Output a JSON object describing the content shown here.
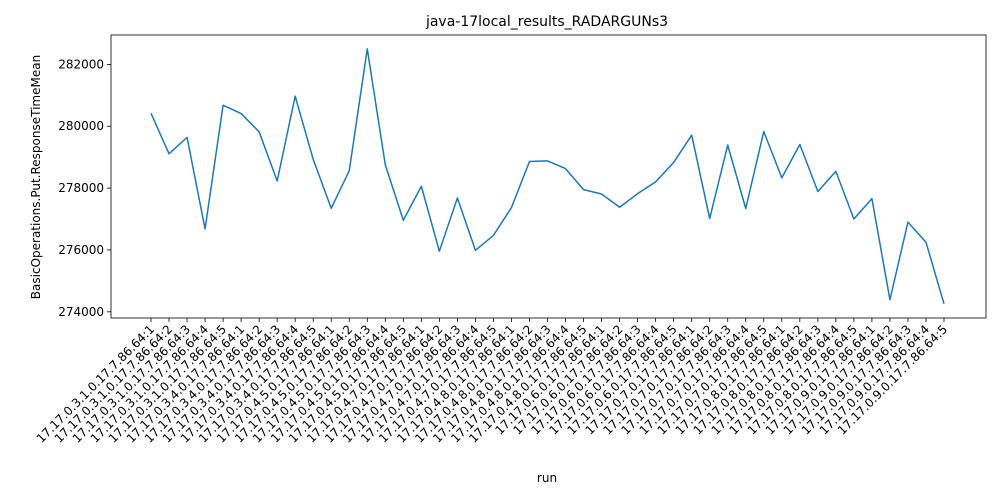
{
  "chart_data": {
    "type": "line",
    "title": "java-17local_results_RADARGUNs3",
    "xlabel": "run",
    "ylabel": "BasicOperations.Put.ResponseTimeMean",
    "ylim": [
      273800,
      282950
    ],
    "yticks": [
      274000,
      276000,
      278000,
      280000,
      282000
    ],
    "ytick_labels": [
      "274000",
      "276000",
      "278000",
      "280000",
      "282000"
    ],
    "grid": false,
    "line_color": "#1f77b4",
    "categories": [
      "17.17.0.3.1.0.17.7.86.64:1",
      "17.17.0.3.1.0.17.7.86.64:2",
      "17.17.0.3.1.0.17.7.86.64:3",
      "17.17.0.3.1.0.17.7.86.64:4",
      "17.17.0.3.1.0.17.7.86.64:5",
      "17.17.0.3.4.0.17.7.86.64:1",
      "17.17.0.3.4.0.17.7.86.64:2",
      "17.17.0.3.4.0.17.7.86.64:3",
      "17.17.0.3.4.0.17.7.86.64:4",
      "17.17.0.3.4.0.17.7.86.64:5",
      "17.17.0.4.5.0.17.7.86.64:1",
      "17.17.0.4.5.0.17.7.86.64:2",
      "17.17.0.4.5.0.17.7.86.64:3",
      "17.17.0.4.5.0.17.7.86.64:4",
      "17.17.0.4.5.0.17.7.86.64:5",
      "17.17.0.4.7.0.17.7.86.64:1",
      "17.17.0.4.7.0.17.7.86.64:2",
      "17.17.0.4.7.0.17.7.86.64:3",
      "17.17.0.4.7.0.17.7.86.64:4",
      "17.17.0.4.7.0.17.7.86.64:5",
      "17.17.0.4.8.0.17.7.86.64:1",
      "17.17.0.4.8.0.17.7.86.64:2",
      "17.17.0.4.8.0.17.7.86.64:3",
      "17.17.0.4.8.0.17.7.86.64:4",
      "17.17.0.4.8.0.17.7.86.64:5",
      "17.17.0.6.0.17.7.86.64:1",
      "17.17.0.6.0.17.7.86.64:2",
      "17.17.0.6.0.17.7.86.64:3",
      "17.17.0.6.0.17.7.86.64:4",
      "17.17.0.6.0.17.7.86.64:5",
      "17.17.0.7.0.17.7.86.64:1",
      "17.17.0.7.0.17.7.86.64:2",
      "17.17.0.7.0.17.7.86.64:3",
      "17.17.0.7.0.17.7.86.64:4",
      "17.17.0.7.0.17.7.86.64:5",
      "17.17.0.8.0.17.7.86.64:1",
      "17.17.0.8.0.17.7.86.64:2",
      "17.17.0.8.0.17.7.86.64:3",
      "17.17.0.8.0.17.7.86.64:4",
      "17.17.0.8.0.17.7.86.64:5",
      "17.17.0.9.0.17.7.86.64:1",
      "17.17.0.9.0.17.7.86.64:2",
      "17.17.0.9.0.17.7.86.64:3",
      "17.17.0.9.0.17.7.86.64:4",
      "17.17.0.9.0.17.7.86.64:5"
    ],
    "values": [
      280420,
      279110,
      279640,
      276680,
      280680,
      280410,
      279820,
      278230,
      280970,
      278930,
      277350,
      278560,
      282500,
      278750,
      276960,
      278060,
      275960,
      277680,
      275990,
      276470,
      277370,
      278860,
      278880,
      278630,
      277950,
      277810,
      277380,
      277820,
      278200,
      278830,
      279710,
      277020,
      279390,
      277340,
      279830,
      278330,
      279410,
      277890,
      278540,
      277000,
      277660,
      274390,
      276900,
      276250,
      274260
    ]
  }
}
